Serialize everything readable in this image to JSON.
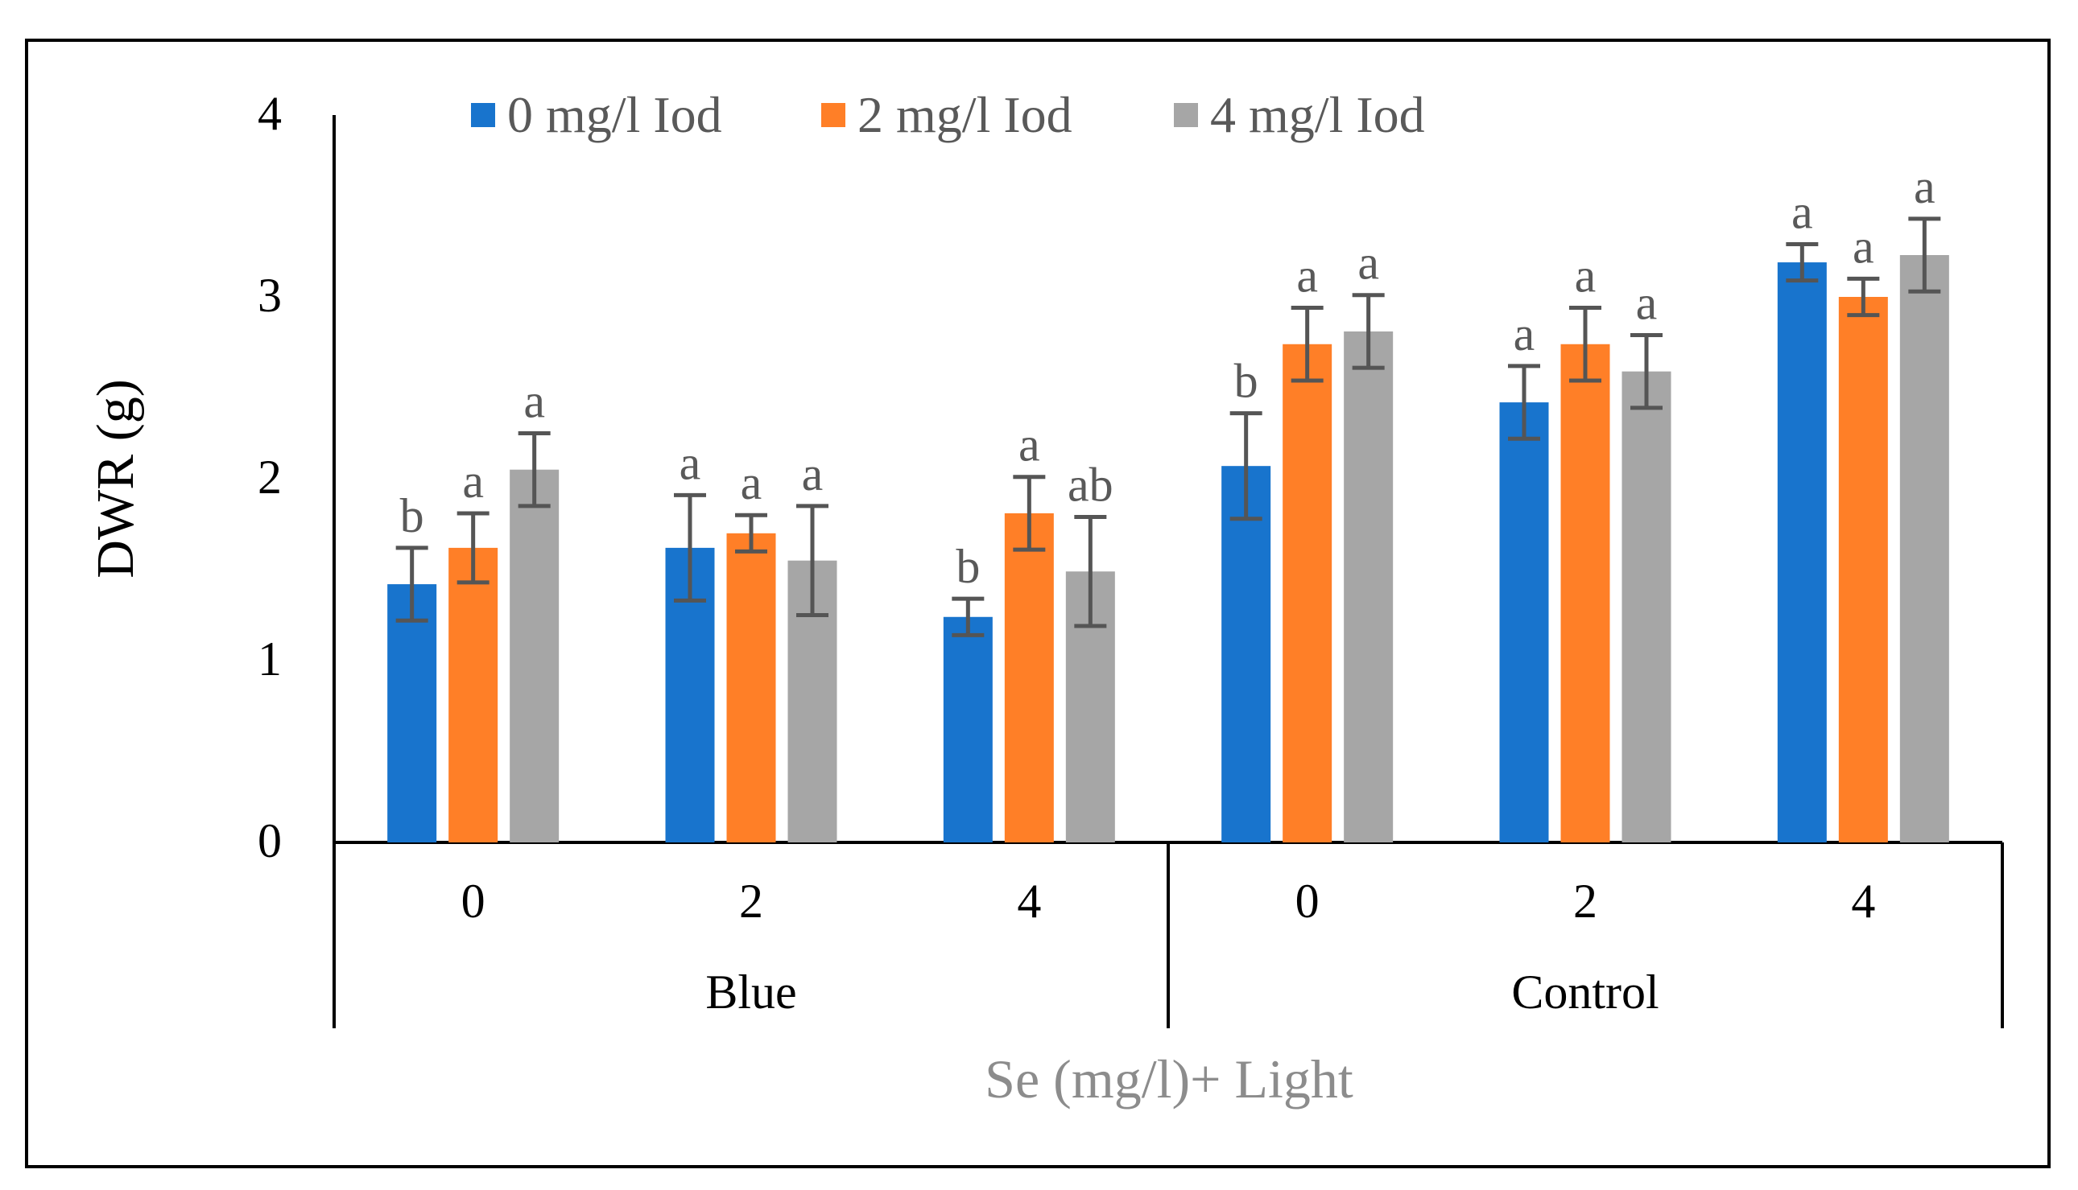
{
  "chart_data": {
    "type": "bar",
    "title": "",
    "ylabel": "DWR (g)",
    "xlabel": "Se (mg/l)+ Light",
    "ylim": [
      0,
      4
    ],
    "yticks": [
      "0",
      "1",
      "2",
      "3",
      "4"
    ],
    "grid": false,
    "legend_position": "top",
    "groups": [
      {
        "label": "Blue",
        "categories": [
          "0",
          "2",
          "4"
        ]
      },
      {
        "label": "Control",
        "categories": [
          "0",
          "2",
          "4"
        ]
      }
    ],
    "series": [
      {
        "name": "0 mg/l Iod",
        "color": "#1874CD",
        "values": [
          1.42,
          1.62,
          1.24,
          2.07,
          2.42,
          3.19
        ],
        "errors": [
          0.2,
          0.29,
          0.1,
          0.29,
          0.2,
          0.1
        ],
        "letters": [
          "b",
          "a",
          "b",
          "b",
          "a",
          "a"
        ]
      },
      {
        "name": "2 mg/l Iod",
        "color": "#FF7F27",
        "values": [
          1.62,
          1.7,
          1.81,
          2.74,
          2.74,
          3.0
        ],
        "errors": [
          0.19,
          0.1,
          0.2,
          0.2,
          0.2,
          0.1
        ],
        "letters": [
          "a",
          "a",
          "a",
          "a",
          "a",
          "a"
        ]
      },
      {
        "name": "4 mg/l Iod",
        "color": "#A6A6A6",
        "values": [
          2.05,
          1.55,
          1.49,
          2.81,
          2.59,
          3.23
        ],
        "errors": [
          0.2,
          0.3,
          0.3,
          0.2,
          0.2,
          0.2
        ],
        "letters": [
          "a",
          "a",
          "ab",
          "a",
          "a",
          "a"
        ]
      }
    ],
    "error_bar_color": "#555555",
    "letter_color": "#595959",
    "xlabel_color": "#8C8C8C"
  }
}
